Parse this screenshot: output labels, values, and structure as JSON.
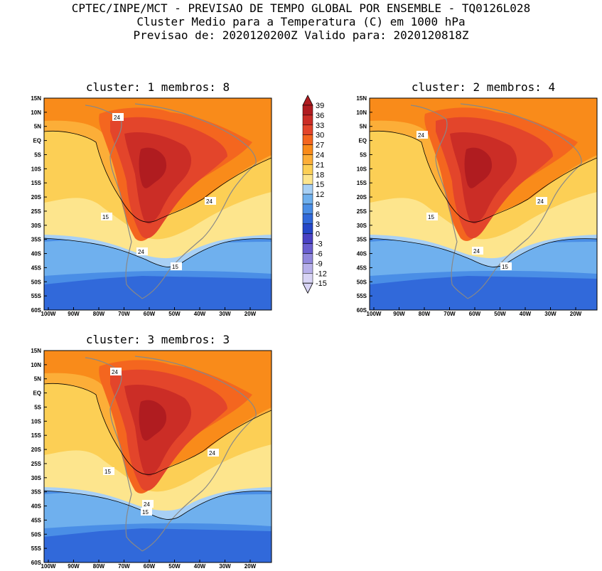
{
  "header": {
    "line1": "CPTEC/INPE/MCT - PREVISAO DE TEMPO GLOBAL POR ENSEMBLE - TQ0126L028",
    "line2": "Cluster Medio para a Temperatura (C) em 1000 hPa",
    "line3": "Previsao de: 2020120200Z   Valido para: 2020120818Z"
  },
  "panels": [
    {
      "title": "cluster: 1  membros: 8",
      "contour_labels": [
        "24",
        "24",
        "15",
        "24",
        "15"
      ]
    },
    {
      "title": "cluster: 2  membros: 4",
      "contour_labels": [
        "24",
        "24",
        "15",
        "24",
        "15"
      ]
    },
    {
      "title": "cluster: 3  membros: 3",
      "contour_labels": [
        "24",
        "24",
        "15",
        "24",
        "15"
      ]
    }
  ],
  "axes": {
    "lat_labels": [
      "15N",
      "10N",
      "5N",
      "EQ",
      "5S",
      "10S",
      "15S",
      "20S",
      "25S",
      "30S",
      "35S",
      "40S",
      "45S",
      "50S",
      "55S",
      "60S"
    ],
    "lon_labels": [
      "100W",
      "90W",
      "80W",
      "70W",
      "60W",
      "50W",
      "40W",
      "30W",
      "20W"
    ]
  },
  "colorbar": {
    "labels": [
      "39",
      "36",
      "33",
      "30",
      "27",
      "24",
      "21",
      "18",
      "15",
      "12",
      "9",
      "6",
      "3",
      "0",
      "-3",
      "-6",
      "-9",
      "-12",
      "-15"
    ],
    "colors": {
      "above36": "#b01c20",
      "c33": "#cb2d26",
      "c30": "#e3452b",
      "c27": "#f4661f",
      "c24": "#f98b1a",
      "c21": "#fcae38",
      "c18": "#fccf55",
      "c15": "#fde58d",
      "c12": "#a8d0f5",
      "c9": "#6fb0ee",
      "c6": "#4a8ee6",
      "c3": "#3169da",
      "c0": "#2547c8",
      "cm3": "#4a42c4",
      "cm6": "#6a5fd0",
      "cm9": "#9188dd",
      "cm12": "#b7b0ea",
      "below": "#d8d4f5"
    }
  }
}
